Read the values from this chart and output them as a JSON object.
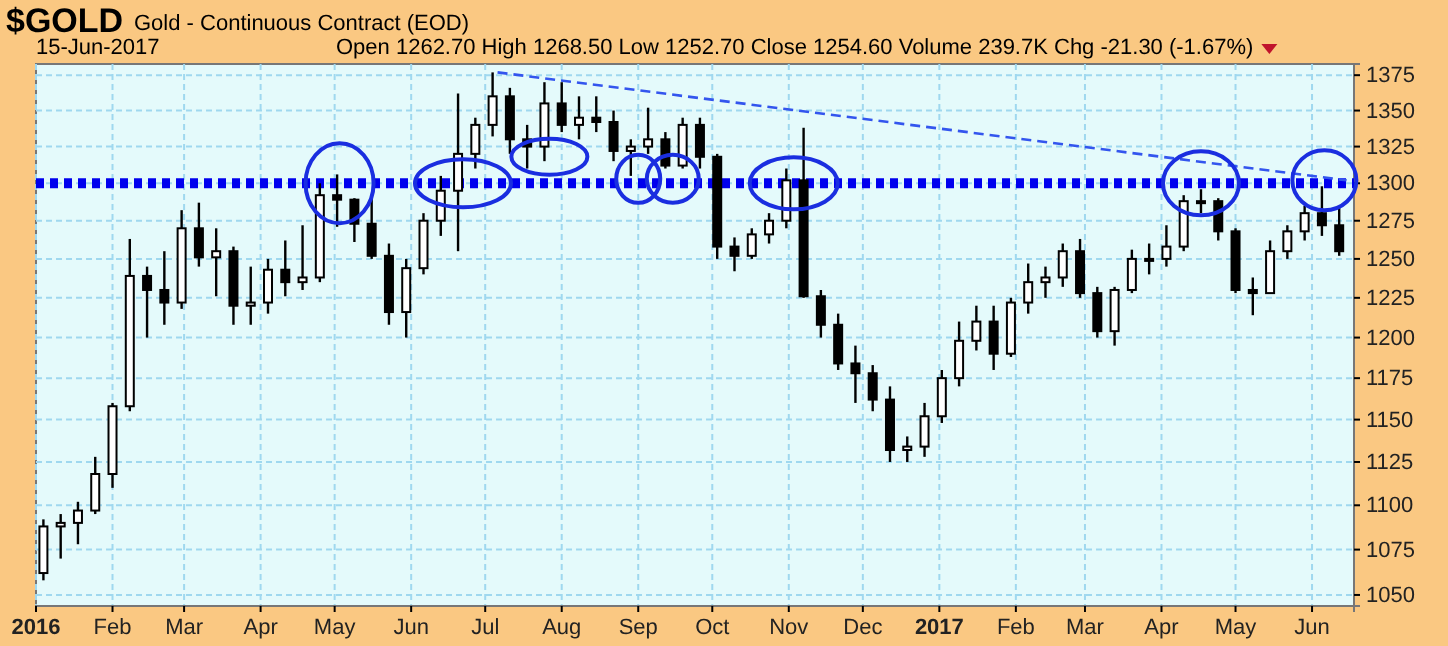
{
  "chart_data": {
    "type": "candlestick",
    "title": "$GOLD",
    "subtitle": "Gold - Continuous Contract (EOD)",
    "annotations": [
      "15-Jun-2017",
      "Open 1262.70  High 1268.50  Low 1252.70  Close 1254.60  Volume 239.7K  Chg -21.30 (-1.67%)"
    ],
    "x": [
      "2016-01-04",
      "2016-01-11",
      "2016-01-18",
      "2016-01-25",
      "2016-02-01",
      "2016-02-08",
      "2016-02-15",
      "2016-02-22",
      "2016-02-29",
      "2016-03-07",
      "2016-03-14",
      "2016-03-21",
      "2016-03-28",
      "2016-04-04",
      "2016-04-11",
      "2016-04-18",
      "2016-04-25",
      "2016-05-02",
      "2016-05-09",
      "2016-05-16",
      "2016-05-23",
      "2016-05-30",
      "2016-06-06",
      "2016-06-13",
      "2016-06-20",
      "2016-06-27",
      "2016-07-04",
      "2016-07-11",
      "2016-07-18",
      "2016-07-25",
      "2016-08-01",
      "2016-08-08",
      "2016-08-15",
      "2016-08-22",
      "2016-08-29",
      "2016-09-05",
      "2016-09-12",
      "2016-09-19",
      "2016-09-26",
      "2016-10-03",
      "2016-10-10",
      "2016-10-17",
      "2016-10-24",
      "2016-10-31",
      "2016-11-07",
      "2016-11-14",
      "2016-11-21",
      "2016-11-28",
      "2016-12-05",
      "2016-12-12",
      "2016-12-19",
      "2016-12-26",
      "2017-01-02",
      "2017-01-09",
      "2017-01-16",
      "2017-01-23",
      "2017-01-30",
      "2017-02-06",
      "2017-02-13",
      "2017-02-20",
      "2017-02-27",
      "2017-03-06",
      "2017-03-13",
      "2017-03-20",
      "2017-03-27",
      "2017-04-03",
      "2017-04-10",
      "2017-04-17",
      "2017-04-24",
      "2017-05-01",
      "2017-05-08",
      "2017-05-15",
      "2017-05-22",
      "2017-05-29",
      "2017-06-05",
      "2017-06-12"
    ],
    "ohlc": [
      [
        1062,
        1092,
        1058,
        1088
      ],
      [
        1088,
        1095,
        1070,
        1090
      ],
      [
        1090,
        1102,
        1078,
        1097
      ],
      [
        1097,
        1128,
        1095,
        1118
      ],
      [
        1118,
        1160,
        1110,
        1158
      ],
      [
        1158,
        1263,
        1155,
        1239
      ],
      [
        1239,
        1245,
        1200,
        1230
      ],
      [
        1230,
        1255,
        1208,
        1222
      ],
      [
        1222,
        1282,
        1218,
        1270
      ],
      [
        1270,
        1287,
        1245,
        1251
      ],
      [
        1251,
        1270,
        1226,
        1255
      ],
      [
        1255,
        1258,
        1208,
        1220
      ],
      [
        1220,
        1245,
        1208,
        1222
      ],
      [
        1222,
        1250,
        1215,
        1243
      ],
      [
        1243,
        1262,
        1226,
        1235
      ],
      [
        1235,
        1272,
        1230,
        1238
      ],
      [
        1238,
        1300,
        1235,
        1292
      ],
      [
        1292,
        1306,
        1271,
        1289
      ],
      [
        1289,
        1290,
        1261,
        1273
      ],
      [
        1273,
        1290,
        1250,
        1252
      ],
      [
        1252,
        1260,
        1208,
        1216
      ],
      [
        1216,
        1250,
        1200,
        1244
      ],
      [
        1244,
        1280,
        1240,
        1275
      ],
      [
        1275,
        1305,
        1265,
        1295
      ],
      [
        1295,
        1362,
        1255,
        1320
      ],
      [
        1320,
        1345,
        1310,
        1340
      ],
      [
        1340,
        1377,
        1332,
        1360
      ],
      [
        1360,
        1366,
        1320,
        1330
      ],
      [
        1330,
        1340,
        1310,
        1325
      ],
      [
        1325,
        1370,
        1315,
        1355
      ],
      [
        1355,
        1370,
        1335,
        1340
      ],
      [
        1340,
        1360,
        1330,
        1345
      ],
      [
        1345,
        1360,
        1335,
        1342
      ],
      [
        1342,
        1350,
        1315,
        1322
      ],
      [
        1322,
        1330,
        1305,
        1325
      ],
      [
        1325,
        1352,
        1320,
        1330
      ],
      [
        1330,
        1335,
        1310,
        1312
      ],
      [
        1312,
        1345,
        1310,
        1340
      ],
      [
        1340,
        1345,
        1310,
        1318
      ],
      [
        1318,
        1320,
        1250,
        1258
      ],
      [
        1258,
        1264,
        1242,
        1252
      ],
      [
        1252,
        1270,
        1250,
        1266
      ],
      [
        1266,
        1280,
        1260,
        1275
      ],
      [
        1275,
        1310,
        1270,
        1302
      ],
      [
        1302,
        1338,
        1225,
        1226
      ],
      [
        1226,
        1230,
        1200,
        1208
      ],
      [
        1208,
        1215,
        1180,
        1184
      ],
      [
        1184,
        1195,
        1160,
        1178
      ],
      [
        1178,
        1183,
        1155,
        1162
      ],
      [
        1162,
        1170,
        1125,
        1132
      ],
      [
        1132,
        1140,
        1125,
        1134
      ],
      [
        1134,
        1160,
        1128,
        1152
      ],
      [
        1152,
        1180,
        1148,
        1175
      ],
      [
        1175,
        1210,
        1170,
        1198
      ],
      [
        1198,
        1220,
        1192,
        1210
      ],
      [
        1210,
        1220,
        1180,
        1190
      ],
      [
        1190,
        1225,
        1188,
        1222
      ],
      [
        1222,
        1247,
        1215,
        1235
      ],
      [
        1235,
        1245,
        1225,
        1238
      ],
      [
        1238,
        1260,
        1232,
        1255
      ],
      [
        1255,
        1263,
        1225,
        1228
      ],
      [
        1228,
        1232,
        1200,
        1204
      ],
      [
        1204,
        1232,
        1195,
        1230
      ],
      [
        1230,
        1256,
        1228,
        1250
      ],
      [
        1250,
        1260,
        1240,
        1250
      ],
      [
        1250,
        1272,
        1245,
        1258
      ],
      [
        1258,
        1292,
        1255,
        1288
      ],
      [
        1288,
        1296,
        1280,
        1288
      ],
      [
        1288,
        1290,
        1262,
        1268
      ],
      [
        1268,
        1270,
        1228,
        1230
      ],
      [
        1230,
        1238,
        1214,
        1228
      ],
      [
        1228,
        1262,
        1228,
        1255
      ],
      [
        1255,
        1272,
        1250,
        1268
      ],
      [
        1268,
        1285,
        1262,
        1280
      ],
      [
        1280,
        1298,
        1265,
        1272
      ],
      [
        1272,
        1284,
        1252,
        1255
      ]
    ],
    "series": [
      {
        "type": "line",
        "x": [
          "2016-07-06",
          "2017-06-15"
        ],
        "values": [
          1377,
          1302
        ],
        "color": "#3355ee",
        "line_style": "dashed"
      }
    ],
    "ref_lines": [
      {
        "axis": "y",
        "value": 1300,
        "color": "#0000ee",
        "line_style": "dotted"
      }
    ],
    "log": true,
    "ylim": [
      1044,
      1383
    ],
    "yticks": [
      1050,
      1075,
      1100,
      1125,
      1150,
      1175,
      1200,
      1225,
      1250,
      1275,
      1300,
      1325,
      1350,
      1375
    ],
    "xlim": [
      "2016-01-01",
      "2017-06-18"
    ],
    "xticks": [
      {
        "value": "2016-01-01",
        "label": "2016"
      },
      {
        "value": "2016-02-01",
        "label": "Feb"
      },
      {
        "value": "2016-03-01",
        "label": "Mar"
      },
      {
        "value": "2016-04-01",
        "label": "Apr"
      },
      {
        "value": "2016-05-01",
        "label": "May"
      },
      {
        "value": "2016-06-01",
        "label": "Jun"
      },
      {
        "value": "2016-07-01",
        "label": "Jul"
      },
      {
        "value": "2016-08-01",
        "label": "Aug"
      },
      {
        "value": "2016-09-01",
        "label": "Sep"
      },
      {
        "value": "2016-10-01",
        "label": "Oct"
      },
      {
        "value": "2016-11-01",
        "label": "Nov"
      },
      {
        "value": "2016-12-01",
        "label": "Dec"
      },
      {
        "value": "2017-01-01",
        "label": "2017"
      },
      {
        "value": "2017-02-01",
        "label": "Feb"
      },
      {
        "value": "2017-03-01",
        "label": "Mar"
      },
      {
        "value": "2017-04-01",
        "label": "Apr"
      },
      {
        "value": "2017-05-01",
        "label": "May"
      },
      {
        "value": "2017-06-01",
        "label": "Jun"
      }
    ],
    "grid": true
  }
}
